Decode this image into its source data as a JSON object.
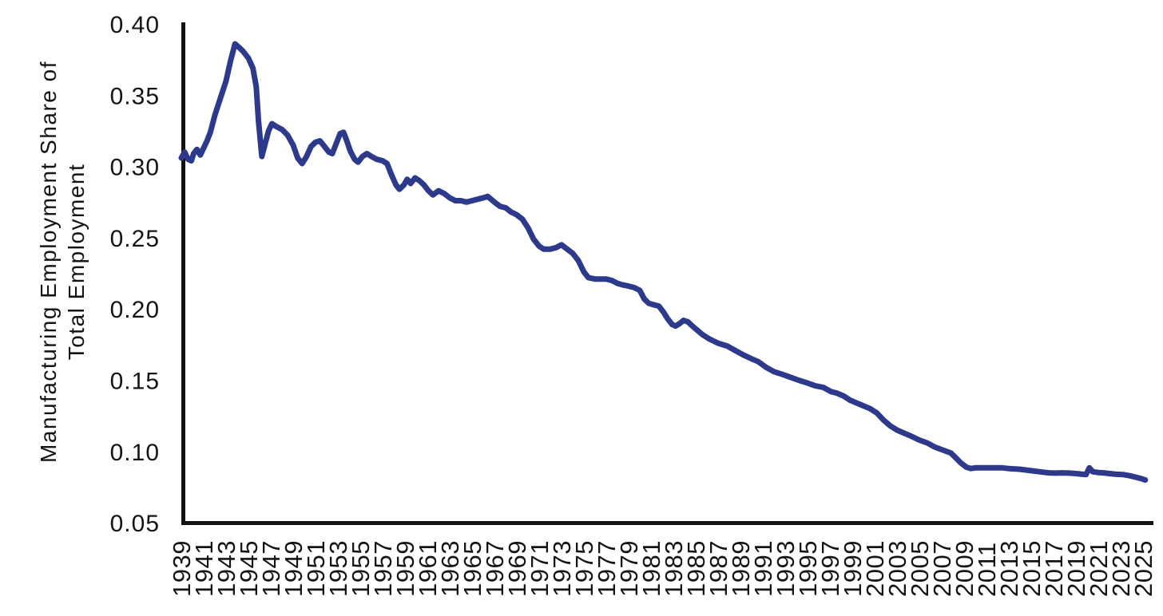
{
  "page": {
    "background": "#ffffff"
  },
  "chart_data": {
    "type": "line",
    "title": "",
    "ylabel_line1": "Manufacturing Employment Share of",
    "ylabel_line2": "Total Employment",
    "xlabel": "",
    "grid": false,
    "legend": "none",
    "line_color": "#2d3a8b",
    "axis_color": "#111111",
    "xlim": [
      1939,
      2026
    ],
    "ylim": [
      0.05,
      0.4
    ],
    "y_ticks": [
      "0.40",
      "0.35",
      "0.30",
      "0.25",
      "0.20",
      "0.15",
      "0.10",
      "0.05"
    ],
    "y_tick_values": [
      0.4,
      0.35,
      0.3,
      0.25,
      0.2,
      0.15,
      0.1,
      0.05
    ],
    "x_tick_years": [
      1939,
      1941,
      1943,
      1945,
      1947,
      1949,
      1951,
      1953,
      1955,
      1957,
      1959,
      1961,
      1963,
      1965,
      1967,
      1969,
      1971,
      1973,
      1975,
      1977,
      1979,
      1981,
      1983,
      1985,
      1987,
      1989,
      1991,
      1993,
      1995,
      1997,
      1999,
      2001,
      2003,
      2005,
      2007,
      2009,
      2011,
      2013,
      2015,
      2017,
      2019,
      2021,
      2023,
      2025
    ],
    "series": [
      {
        "name": "Manufacturing employment share of total employment",
        "points": [
          [
            1939.0,
            0.306
          ],
          [
            1939.3,
            0.31
          ],
          [
            1939.6,
            0.305
          ],
          [
            1939.9,
            0.304
          ],
          [
            1940.1,
            0.309
          ],
          [
            1940.4,
            0.312
          ],
          [
            1940.7,
            0.308
          ],
          [
            1941.0,
            0.313
          ],
          [
            1941.3,
            0.318
          ],
          [
            1941.6,
            0.324
          ],
          [
            1942.0,
            0.336
          ],
          [
            1942.5,
            0.348
          ],
          [
            1943.0,
            0.36
          ],
          [
            1943.4,
            0.374
          ],
          [
            1943.8,
            0.386
          ],
          [
            1944.1,
            0.384
          ],
          [
            1944.5,
            0.381
          ],
          [
            1945.0,
            0.376
          ],
          [
            1945.4,
            0.369
          ],
          [
            1945.7,
            0.356
          ],
          [
            1945.9,
            0.332
          ],
          [
            1946.2,
            0.307
          ],
          [
            1946.5,
            0.316
          ],
          [
            1946.8,
            0.325
          ],
          [
            1947.1,
            0.33
          ],
          [
            1947.5,
            0.328
          ],
          [
            1948.0,
            0.326
          ],
          [
            1948.5,
            0.322
          ],
          [
            1949.0,
            0.315
          ],
          [
            1949.4,
            0.306
          ],
          [
            1949.8,
            0.302
          ],
          [
            1950.2,
            0.307
          ],
          [
            1950.6,
            0.314
          ],
          [
            1951.0,
            0.317
          ],
          [
            1951.4,
            0.318
          ],
          [
            1951.8,
            0.314
          ],
          [
            1952.2,
            0.31
          ],
          [
            1952.5,
            0.309
          ],
          [
            1952.9,
            0.317
          ],
          [
            1953.2,
            0.323
          ],
          [
            1953.5,
            0.324
          ],
          [
            1953.8,
            0.318
          ],
          [
            1954.1,
            0.311
          ],
          [
            1954.5,
            0.305
          ],
          [
            1954.8,
            0.303
          ],
          [
            1955.2,
            0.307
          ],
          [
            1955.6,
            0.309
          ],
          [
            1956.0,
            0.307
          ],
          [
            1956.5,
            0.305
          ],
          [
            1957.0,
            0.304
          ],
          [
            1957.4,
            0.302
          ],
          [
            1957.8,
            0.294
          ],
          [
            1958.2,
            0.287
          ],
          [
            1958.5,
            0.284
          ],
          [
            1958.9,
            0.287
          ],
          [
            1959.2,
            0.291
          ],
          [
            1959.5,
            0.288
          ],
          [
            1959.9,
            0.292
          ],
          [
            1960.3,
            0.29
          ],
          [
            1960.7,
            0.287
          ],
          [
            1961.1,
            0.283
          ],
          [
            1961.5,
            0.28
          ],
          [
            1962.0,
            0.283
          ],
          [
            1962.5,
            0.281
          ],
          [
            1963.0,
            0.278
          ],
          [
            1963.5,
            0.276
          ],
          [
            1964.0,
            0.276
          ],
          [
            1964.5,
            0.275
          ],
          [
            1965.0,
            0.276
          ],
          [
            1965.5,
            0.277
          ],
          [
            1966.0,
            0.278
          ],
          [
            1966.4,
            0.279
          ],
          [
            1967.0,
            0.275
          ],
          [
            1967.5,
            0.272
          ],
          [
            1968.0,
            0.271
          ],
          [
            1968.5,
            0.268
          ],
          [
            1969.0,
            0.266
          ],
          [
            1969.5,
            0.263
          ],
          [
            1970.0,
            0.257
          ],
          [
            1970.5,
            0.249
          ],
          [
            1971.0,
            0.244
          ],
          [
            1971.4,
            0.242
          ],
          [
            1972.0,
            0.242
          ],
          [
            1972.5,
            0.243
          ],
          [
            1973.0,
            0.245
          ],
          [
            1973.5,
            0.242
          ],
          [
            1974.0,
            0.239
          ],
          [
            1974.5,
            0.234
          ],
          [
            1975.0,
            0.226
          ],
          [
            1975.4,
            0.222
          ],
          [
            1976.0,
            0.221
          ],
          [
            1976.5,
            0.221
          ],
          [
            1977.0,
            0.221
          ],
          [
            1977.5,
            0.22
          ],
          [
            1978.0,
            0.218
          ],
          [
            1978.4,
            0.217
          ],
          [
            1979.0,
            0.216
          ],
          [
            1979.5,
            0.215
          ],
          [
            1980.0,
            0.213
          ],
          [
            1980.4,
            0.207
          ],
          [
            1980.8,
            0.204
          ],
          [
            1981.2,
            0.203
          ],
          [
            1981.7,
            0.202
          ],
          [
            1982.1,
            0.198
          ],
          [
            1982.5,
            0.193
          ],
          [
            1982.9,
            0.189
          ],
          [
            1983.2,
            0.188
          ],
          [
            1983.6,
            0.19
          ],
          [
            1983.9,
            0.192
          ],
          [
            1984.3,
            0.191
          ],
          [
            1984.7,
            0.188
          ],
          [
            1985.0,
            0.186
          ],
          [
            1985.6,
            0.182
          ],
          [
            1986.2,
            0.179
          ],
          [
            1987.0,
            0.176
          ],
          [
            1987.8,
            0.174
          ],
          [
            1988.5,
            0.171
          ],
          [
            1989.2,
            0.168
          ],
          [
            1990.0,
            0.165
          ],
          [
            1990.6,
            0.163
          ],
          [
            1991.3,
            0.159
          ],
          [
            1992.0,
            0.156
          ],
          [
            1992.8,
            0.154
          ],
          [
            1993.5,
            0.152
          ],
          [
            1994.2,
            0.15
          ],
          [
            1995.0,
            0.148
          ],
          [
            1995.7,
            0.146
          ],
          [
            1996.4,
            0.145
          ],
          [
            1997.1,
            0.142
          ],
          [
            1997.6,
            0.141
          ],
          [
            1998.2,
            0.139
          ],
          [
            1998.8,
            0.136
          ],
          [
            1999.4,
            0.134
          ],
          [
            2000.0,
            0.132
          ],
          [
            2000.6,
            0.13
          ],
          [
            2001.2,
            0.127
          ],
          [
            2001.8,
            0.122
          ],
          [
            2002.4,
            0.118
          ],
          [
            2003.0,
            0.115
          ],
          [
            2003.6,
            0.113
          ],
          [
            2004.2,
            0.111
          ],
          [
            2005.0,
            0.108
          ],
          [
            2005.7,
            0.106
          ],
          [
            2006.4,
            0.103
          ],
          [
            2007.1,
            0.101
          ],
          [
            2007.8,
            0.099
          ],
          [
            2008.2,
            0.096
          ],
          [
            2008.7,
            0.092
          ],
          [
            2009.2,
            0.089
          ],
          [
            2009.6,
            0.088
          ],
          [
            2010.0,
            0.0885
          ],
          [
            2010.8,
            0.0885
          ],
          [
            2011.6,
            0.0885
          ],
          [
            2012.4,
            0.0885
          ],
          [
            2013.0,
            0.088
          ],
          [
            2014.0,
            0.0875
          ],
          [
            2015.0,
            0.0865
          ],
          [
            2016.0,
            0.0855
          ],
          [
            2016.6,
            0.085
          ],
          [
            2017.2,
            0.0848
          ],
          [
            2017.8,
            0.085
          ],
          [
            2018.4,
            0.0848
          ],
          [
            2019.0,
            0.0845
          ],
          [
            2019.6,
            0.084
          ],
          [
            2019.9,
            0.0838
          ],
          [
            2020.2,
            0.0885
          ],
          [
            2020.5,
            0.0858
          ],
          [
            2021.0,
            0.0852
          ],
          [
            2021.5,
            0.085
          ],
          [
            2022.0,
            0.0845
          ],
          [
            2022.6,
            0.084
          ],
          [
            2023.2,
            0.0838
          ],
          [
            2023.8,
            0.083
          ],
          [
            2024.3,
            0.082
          ],
          [
            2024.8,
            0.081
          ],
          [
            2025.2,
            0.08
          ]
        ]
      }
    ]
  }
}
